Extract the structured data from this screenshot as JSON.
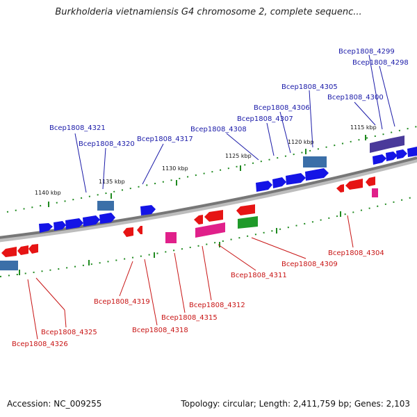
{
  "title": "Burkholderia vietnamiensis G4 chromosome 2, complete sequenc...",
  "footer": {
    "accession": "Accession: NC_009255",
    "summary": "Topology: circular; Length: 2,411,759 bp; Genes: 2,103"
  },
  "colors": {
    "backbone": "#8a8a8a",
    "tick": "#1f8a1f",
    "forward_gene": "#1414e6",
    "reverse_gene": "#e61414",
    "label_forward": "#1a1aa8",
    "label_reverse": "#c81414"
  },
  "scale_labels": [
    "1140 kbp",
    "1135 kbp",
    "1130 kbp",
    "1125 kbp",
    "1120 kbp",
    "1115 kbp"
  ],
  "gene_labels_forward": [
    "Bcep1808_4299",
    "Bcep1808_4298",
    "Bcep1808_4305",
    "Bcep1808_4300",
    "Bcep1808_4306",
    "Bcep1808_4307",
    "Bcep1808_4321",
    "Bcep1808_4308",
    "Bcep1808_4320",
    "Bcep1808_4317"
  ],
  "gene_labels_reverse": [
    "Bcep1808_4304",
    "Bcep1808_4309",
    "Bcep1808_4311",
    "Bcep1808_4319",
    "Bcep1808_4312",
    "Bcep1808_4315",
    "Bcep1808_4318",
    "Bcep1808_4325",
    "Bcep1808_4326"
  ]
}
